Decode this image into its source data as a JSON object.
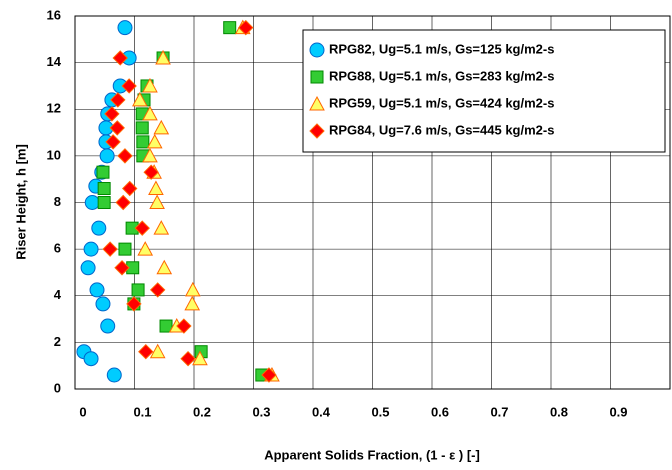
{
  "chart_data": {
    "type": "scatter",
    "xlabel": "Apparent Solids Fraction, (1 - ε ) [-]",
    "ylabel": "Riser Height, h [m]",
    "xlim": [
      0,
      1
    ],
    "ylim": [
      0,
      16
    ],
    "xticks": [
      0,
      0.1,
      0.2,
      0.3,
      0.4,
      0.5,
      0.6,
      0.7,
      0.8,
      0.9,
      1
    ],
    "yticks": [
      0,
      2,
      4,
      6,
      8,
      10,
      12,
      14,
      16
    ],
    "grid": true,
    "legend": "upper right",
    "series": [
      {
        "name": "RPG82, Ug=5.1 m/s, Gs=125 kg/m2-s",
        "marker": "circle",
        "color": "#00ccff",
        "x": [
          0.084,
          0.091,
          0.076,
          0.062,
          0.055,
          0.052,
          0.052,
          0.054,
          0.045,
          0.035,
          0.029,
          0.04,
          0.027,
          0.022,
          0.037,
          0.047,
          0.055,
          0.015,
          0.027,
          0.066
        ],
        "values": [
          15.5,
          14.2,
          13.0,
          12.4,
          11.8,
          11.2,
          10.6,
          10.0,
          9.3,
          8.7,
          8.0,
          6.9,
          6.0,
          5.2,
          4.25,
          3.65,
          2.7,
          1.6,
          1.3,
          0.6
        ]
      },
      {
        "name": "RPG88, Ug=5.1 m/s, Gs=283 kg/m2-s",
        "marker": "square",
        "color": "#33cc33",
        "x": [
          0.26,
          0.148,
          0.121,
          0.116,
          0.113,
          0.113,
          0.114,
          0.114,
          0.047,
          0.049,
          0.049,
          0.096,
          0.084,
          0.097,
          0.106,
          0.099,
          0.153,
          0.212,
          0.314
        ],
        "values": [
          15.5,
          14.2,
          13.0,
          12.4,
          11.8,
          11.2,
          10.6,
          10.0,
          9.3,
          8.6,
          8.0,
          6.9,
          6.0,
          5.2,
          4.25,
          3.65,
          2.7,
          1.6,
          0.6
        ]
      },
      {
        "name": "RPG59, Ug=5.1 m/s, Gs=424 kg/m2-s",
        "marker": "triangle",
        "color": "#ffff66",
        "x": [
          0.282,
          0.148,
          0.126,
          0.109,
          0.126,
          0.145,
          0.134,
          0.126,
          0.133,
          0.136,
          0.138,
          0.145,
          0.118,
          0.15,
          0.198,
          0.197,
          0.171,
          0.139,
          0.21,
          0.331
        ],
        "values": [
          15.5,
          14.2,
          13.0,
          12.4,
          11.8,
          11.2,
          10.6,
          10.0,
          9.3,
          8.6,
          8.0,
          6.9,
          6.0,
          5.2,
          4.25,
          3.65,
          2.7,
          1.6,
          1.3,
          0.6
        ]
      },
      {
        "name": "RPG84, Ug=7.6 m/s, Gs=445 kg/m2-s",
        "marker": "diamond",
        "color": "#ff0000",
        "x": [
          0.287,
          0.076,
          0.091,
          0.072,
          0.062,
          0.071,
          0.064,
          0.084,
          0.128,
          0.092,
          0.081,
          0.113,
          0.059,
          0.079,
          0.139,
          0.099,
          0.183,
          0.119,
          0.19,
          0.326
        ],
        "values": [
          15.5,
          14.2,
          13.0,
          12.4,
          11.8,
          11.2,
          10.6,
          10.0,
          9.3,
          8.6,
          8.0,
          6.9,
          6.0,
          5.2,
          4.25,
          3.65,
          2.7,
          1.6,
          1.3,
          0.6
        ]
      }
    ]
  }
}
